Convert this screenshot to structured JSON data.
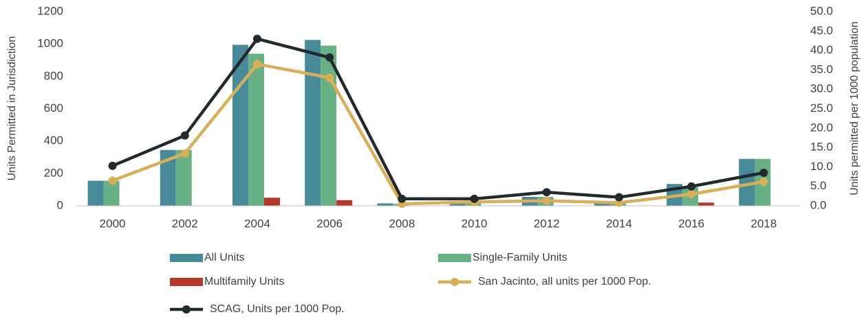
{
  "chart_data": {
    "type": "bar_line",
    "y_label": "Units Permitted in Jurisdiction",
    "y2_label": "Units permitted per 1000 population",
    "categories": [
      "2000",
      "2002",
      "2004",
      "2006",
      "2008",
      "2010",
      "2012",
      "2014",
      "2016",
      "2018"
    ],
    "series": [
      {
        "name": "All Units",
        "type": "bar",
        "color": "#478a99",
        "values": [
          155,
          345,
          995,
          1025,
          15,
          30,
          55,
          25,
          135,
          290
        ]
      },
      {
        "name": "Single-Family Units",
        "type": "bar",
        "color": "#68b184",
        "values": [
          155,
          345,
          940,
          990,
          12,
          25,
          55,
          20,
          115,
          290
        ]
      },
      {
        "name": "Multifamily Units",
        "type": "bar",
        "color": "#b5382b",
        "values": [
          0,
          0,
          50,
          35,
          0,
          0,
          0,
          0,
          20,
          0
        ]
      },
      {
        "name": "San Jacinto, all units per 1000 Pop.",
        "type": "line",
        "axis": "y2",
        "color": "#d9ae56",
        "values": [
          6.5,
          13.5,
          36.5,
          33.0,
          0.5,
          1.0,
          1.3,
          0.8,
          3.0,
          6.2
        ]
      },
      {
        "name": "SCAG, Units per 1000 Pop.",
        "type": "line",
        "axis": "y2",
        "color": "#232a2e",
        "values": [
          10.3,
          18.1,
          43.0,
          38.2,
          1.8,
          1.8,
          3.5,
          2.2,
          5.0,
          8.5
        ]
      }
    ],
    "ylim": [
      0,
      1200
    ],
    "yticks": [
      0,
      200,
      400,
      600,
      800,
      1000,
      1200
    ],
    "y2lim": [
      0,
      50
    ],
    "y2ticks": [
      {
        "value": 0,
        "label": "0.0"
      },
      {
        "value": 5,
        "label": "5.0"
      },
      {
        "value": 10,
        "label": "10.0"
      },
      {
        "value": 15,
        "label": "15.0"
      },
      {
        "value": 20,
        "label": "20.0"
      },
      {
        "value": 25,
        "label": "25.0"
      },
      {
        "value": 30,
        "label": "30.0"
      },
      {
        "value": 35,
        "label": "35.0"
      },
      {
        "value": 40,
        "label": "40.0"
      },
      {
        "value": 45,
        "label": "45.0"
      },
      {
        "value": 50,
        "label": "50.0"
      }
    ],
    "grid": false
  }
}
